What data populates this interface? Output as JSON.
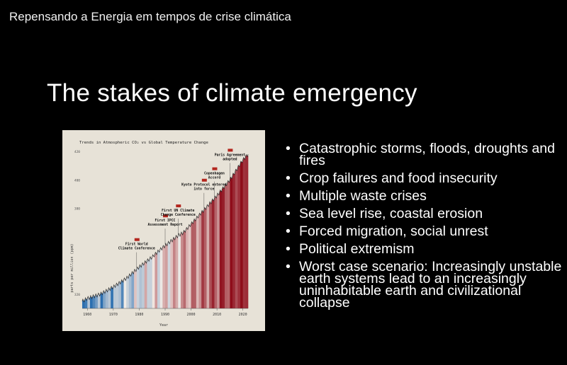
{
  "video": {
    "title": "Repensando a Energia em tempos de crise climática"
  },
  "slide": {
    "title": "The stakes of climate emergency",
    "bullets": [
      "Catastrophic storms, floods, droughts and fires",
      "Crop failures and food insecurity",
      "Multiple waste crises",
      "Sea level rise, coastal erosion",
      "Forced migration, social unrest",
      "Political extremism",
      "Worst case scenario: Increasingly unstable earth systems lead to an increasingly uninhabitable earth and civilizational collapse"
    ]
  },
  "figure": {
    "title": "Trends in Atmospheric CO₂ vs Global Temperature Change",
    "ylabel": "parts per million (ppm)",
    "xlabel": "Year"
  },
  "chart_data": {
    "type": "line",
    "title": "Trends in Atmospheric CO₂ vs Global Temperature Change",
    "xlabel": "Year",
    "ylabel": "parts per million (ppm)",
    "xlim": [
      1958,
      2022
    ],
    "ylim": [
      310,
      420
    ],
    "x_ticks": [
      "1960",
      "1970",
      "1980",
      "1990",
      "2000",
      "2010",
      "2020"
    ],
    "y_ticks": [
      "420",
      "400",
      "380",
      "320"
    ],
    "series": [
      {
        "x": [
          1958,
          1960,
          1965,
          1970,
          1975,
          1980,
          1985,
          1988,
          1990,
          1995,
          1997,
          2000,
          2005,
          2009,
          2010,
          2015,
          2020,
          2022
        ],
        "values": [
          315,
          317,
          320,
          325,
          331,
          339,
          346,
          351,
          354,
          361,
          363,
          369,
          379,
          387,
          389,
          400,
          414,
          418
        ]
      }
    ],
    "annotations": [
      {
        "x": 1979,
        "label": "First World Climate Conference"
      },
      {
        "x": 1990,
        "label": "First IPCC Assessment Report"
      },
      {
        "x": 1995,
        "label": "First UN Climate Change Conference"
      },
      {
        "x": 2005,
        "label": "Kyoto Protocol entered into force"
      },
      {
        "x": 2009,
        "label": "Copenhagen Accord"
      },
      {
        "x": 2015,
        "label": "Paris Agreement adopted"
      }
    ],
    "stripe_colors": {
      "cold": "#2c6fb0",
      "neutral": "#f3ece6",
      "hot": "#8e0d1a"
    }
  }
}
